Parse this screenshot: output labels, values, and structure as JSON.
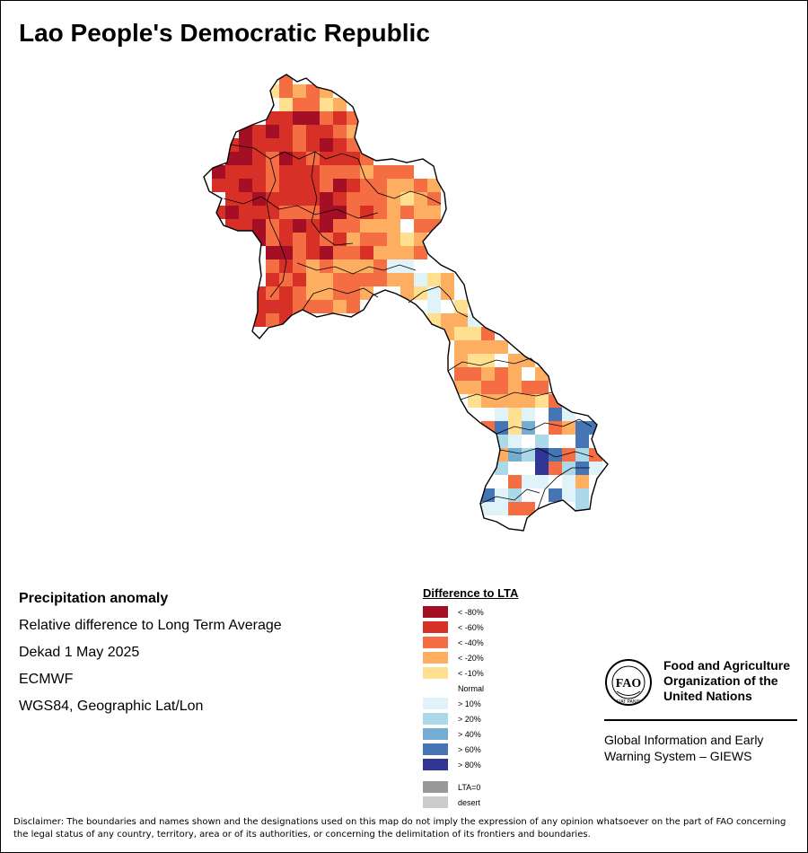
{
  "title": "Lao People's Democratic Republic",
  "info": {
    "heading": "Precipitation anomaly",
    "line1": "Relative difference to Long Term Average",
    "line2": "Dekad 1 May 2025",
    "line3": "ECMWF",
    "line4": "WGS84, Geographic Lat/Lon"
  },
  "legend": {
    "title": "Difference to LTA",
    "items": [
      {
        "label": "< -80%",
        "color": "#a50f26"
      },
      {
        "label": "< -60%",
        "color": "#d73027"
      },
      {
        "label": "< -40%",
        "color": "#f46d43"
      },
      {
        "label": "< -20%",
        "color": "#fdae61"
      },
      {
        "label": "< -10%",
        "color": "#fee090"
      },
      {
        "label": "Normal",
        "color": "#ffffff"
      },
      {
        "label": "> 10%",
        "color": "#e0f3f8"
      },
      {
        "label": "> 20%",
        "color": "#abd9e9"
      },
      {
        "label": "> 40%",
        "color": "#74add1"
      },
      {
        "label": "> 60%",
        "color": "#4575b4"
      },
      {
        "label": "> 80%",
        "color": "#313695"
      }
    ],
    "extra": [
      {
        "label": "LTA=0",
        "color": "#999999"
      },
      {
        "label": "desert",
        "color": "#cccccc"
      }
    ]
  },
  "fao": {
    "name_line1": "Food and Agriculture",
    "name_line2": "Organization of the",
    "name_line3": "United Nations",
    "giews_line1": "Global Information and Early",
    "giews_line2": "Warning System – GIEWS",
    "logo_text": "FAO",
    "logo_motto": "FIAT PANIS"
  },
  "disclaimer": "Disclaimer: The boundaries and names shown and the designations used on this map do not imply the expression of any opinion whatsoever on the part of FAO concerning the legal status of any country, territory, area or of its authorities, or concerning the delimitation of its frontiers and boundaries."
}
